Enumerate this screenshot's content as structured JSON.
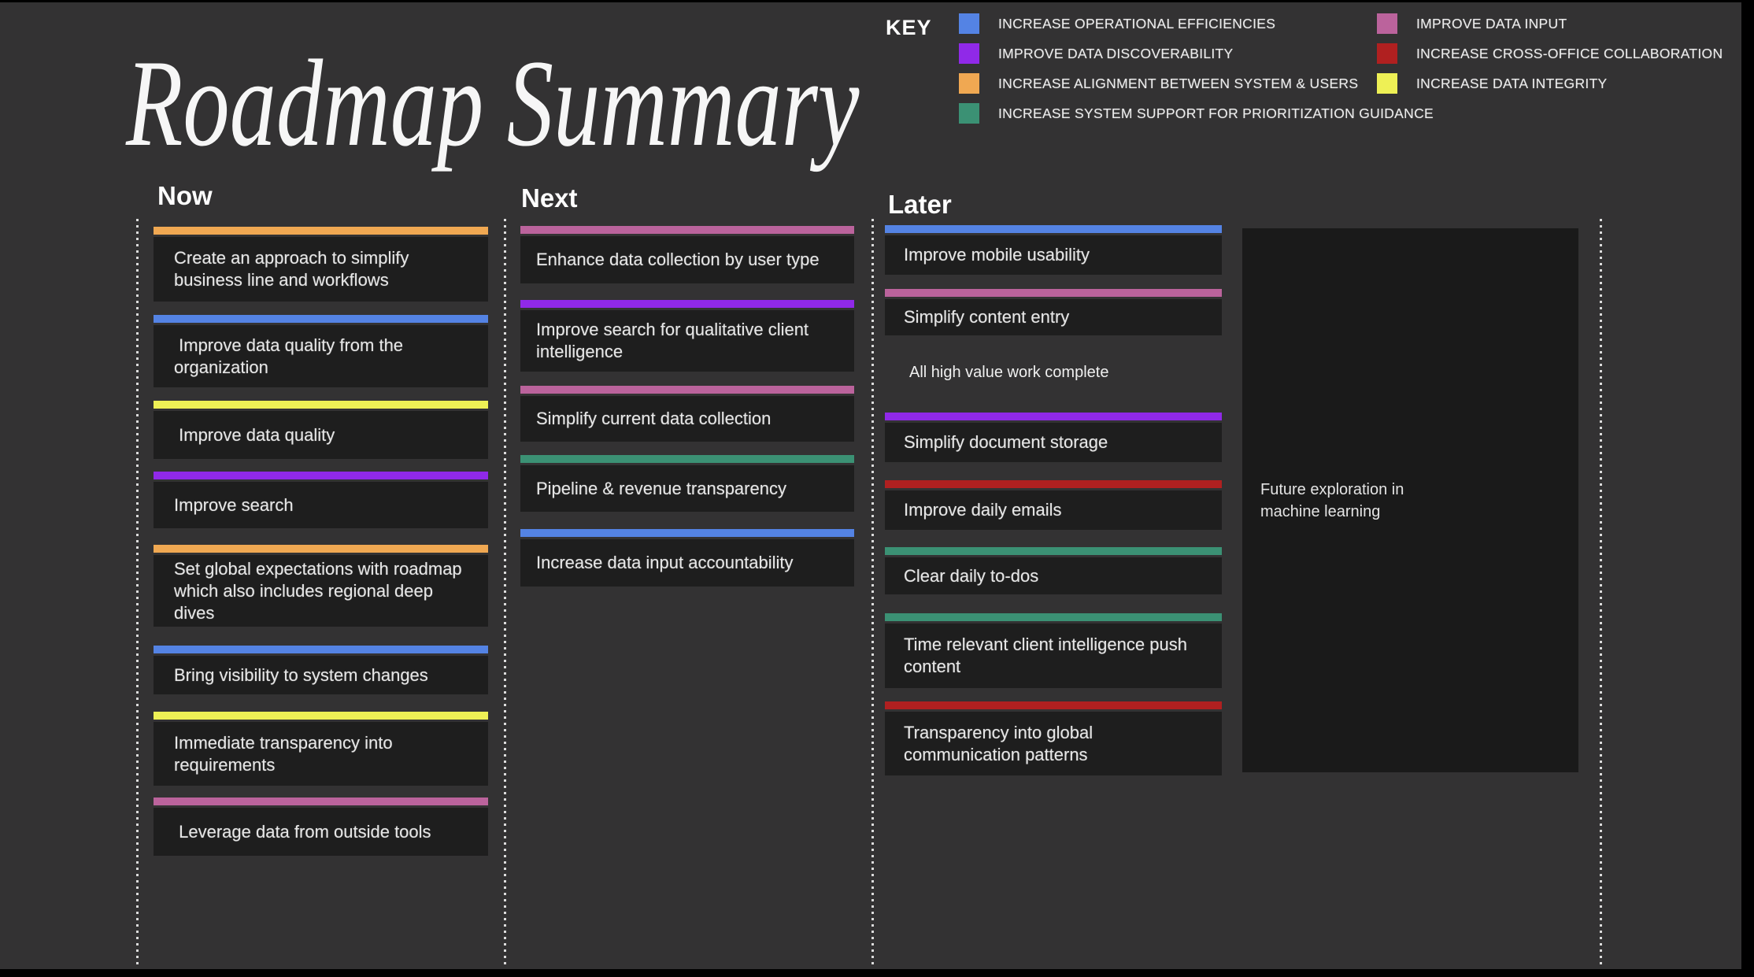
{
  "title": "Roadmap Summary",
  "palette": {
    "blue": "#5483e4",
    "purple": "#9029e8",
    "orange": "#f0a852",
    "teal": "#3b9174",
    "pink": "#bb639c",
    "red": "#b02020",
    "yellow": "#eef055"
  },
  "key": {
    "label": "KEY",
    "columns": [
      [
        {
          "color": "blue",
          "label": "INCREASE OPERATIONAL EFFICIENCIES"
        },
        {
          "color": "purple",
          "label": "IMPROVE DATA DISCOVERABILITY"
        },
        {
          "color": "orange",
          "label": "INCREASE ALIGNMENT BETWEEN SYSTEM & USERS"
        },
        {
          "color": "teal",
          "label": "INCREASE SYSTEM SUPPORT FOR PRIORITIZATION GUIDANCE"
        }
      ],
      [
        {
          "color": "pink",
          "label": "IMPROVE DATA INPUT"
        },
        {
          "color": "red",
          "label": "INCREASE CROSS-OFFICE COLLABORATION"
        },
        {
          "color": "yellow",
          "label": "INCREASE DATA INTEGRITY"
        }
      ]
    ]
  },
  "columns": [
    {
      "header": "Now",
      "cards": [
        {
          "color": "orange",
          "text": "Create an approach to simplify\nbusiness line and workflows"
        },
        {
          "color": "blue",
          "text": " Improve data quality from the\norganization"
        },
        {
          "color": "yellow",
          "text": " Improve data quality"
        },
        {
          "color": "purple",
          "text": "Improve search"
        },
        {
          "color": "orange",
          "text": "Set global expectations with roadmap\nwhich also includes regional deep\ndives"
        },
        {
          "color": "blue",
          "text": "Bring visibility to system changes"
        },
        {
          "color": "yellow",
          "text": "Immediate transparency into\nrequirements"
        },
        {
          "color": "pink",
          "text": " Leverage data from outside tools"
        }
      ]
    },
    {
      "header": "Next",
      "cards": [
        {
          "color": "pink",
          "text": "Enhance data collection by user type"
        },
        {
          "color": "purple",
          "text": "Improve search for qualitative client\nintelligence"
        },
        {
          "color": "pink",
          "text": "Simplify current data collection"
        },
        {
          "color": "teal",
          "text": "Pipeline & revenue transparency"
        },
        {
          "color": "blue",
          "text": "Increase data input accountability"
        }
      ]
    },
    {
      "header": "Later",
      "note": "All high value work complete",
      "cards": [
        {
          "color": "blue",
          "text": "Improve mobile usability"
        },
        {
          "color": "pink",
          "text": "Simplify content entry"
        },
        {
          "color": "purple",
          "text": "Simplify document storage"
        },
        {
          "color": "red",
          "text": "Improve daily emails"
        },
        {
          "color": "teal",
          "text": "Clear daily to-dos"
        },
        {
          "color": "teal",
          "text": "Time relevant client intelligence push\ncontent"
        },
        {
          "color": "red",
          "text": "Transparency into global\ncommunication patterns"
        }
      ]
    }
  ],
  "future_box": {
    "text": "Future exploration in\nmachine learning"
  }
}
